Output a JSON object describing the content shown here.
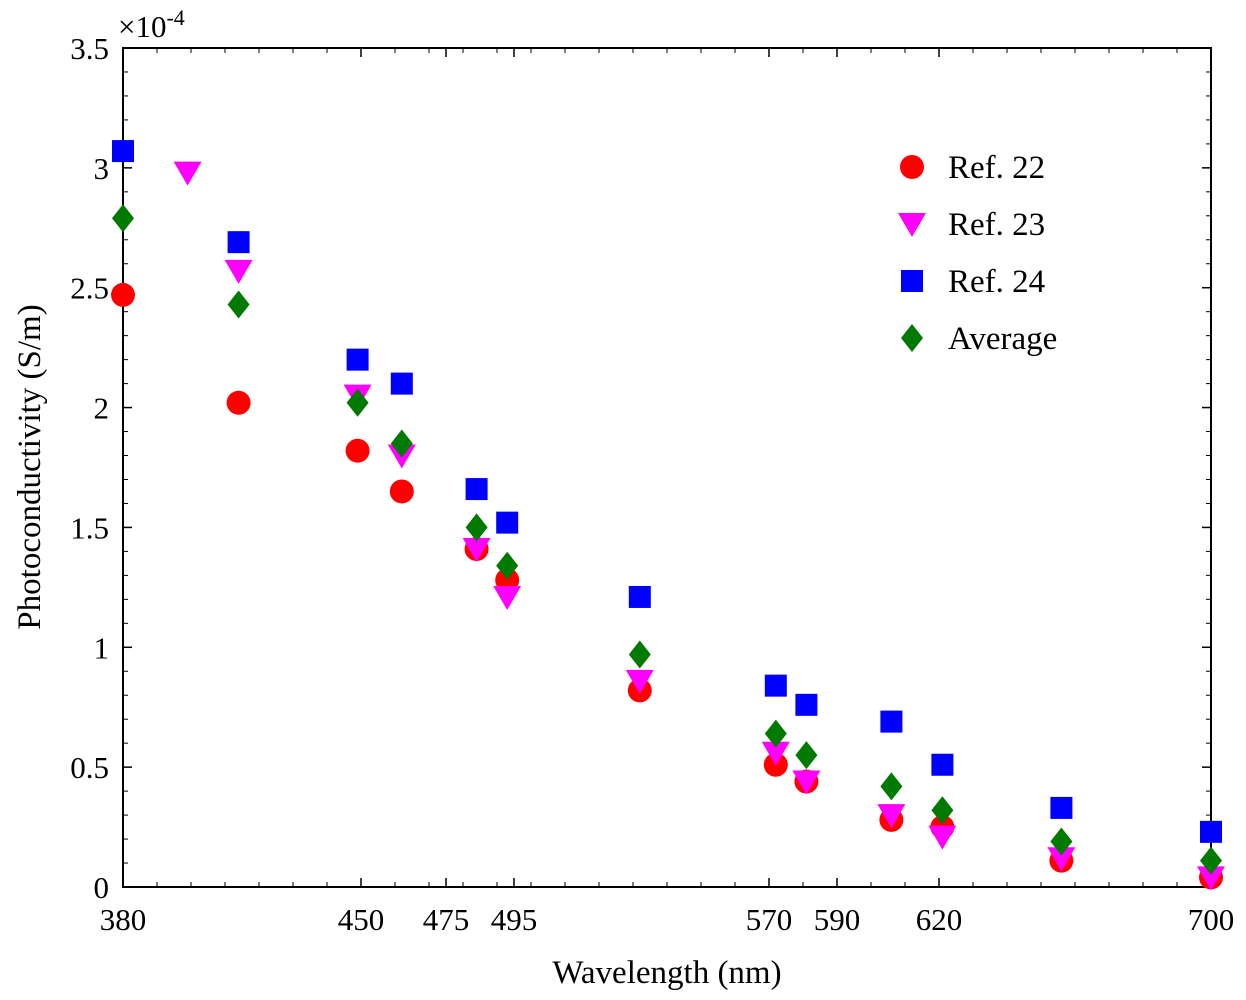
{
  "chart_data": {
    "type": "scatter",
    "xlabel": "Wavelength (nm)",
    "ylabel": "Photoconductivity (S/m)",
    "y_multiplier": {
      "base": "×10",
      "exponent": "-4"
    },
    "xlim": [
      380,
      700
    ],
    "ylim": [
      0,
      3.5
    ],
    "x_ticks": [
      380,
      450,
      475,
      495,
      570,
      590,
      620,
      700
    ],
    "y_ticks": [
      {
        "value": 0,
        "label": "0"
      },
      {
        "value": 0.5,
        "label": "0.5"
      },
      {
        "value": 1,
        "label": "1"
      },
      {
        "value": 1.5,
        "label": "1.5"
      },
      {
        "value": 2,
        "label": "2"
      },
      {
        "value": 2.5,
        "label": "2.5"
      },
      {
        "value": 3,
        "label": "3"
      },
      {
        "value": 3.5,
        "label": "3.5"
      }
    ],
    "grid": false,
    "legend_position": "top-right",
    "series": [
      {
        "name": "Ref. 22",
        "marker": "circle",
        "color": "#ff0000",
        "x": [
          380,
          414,
          449,
          462,
          484,
          493,
          532,
          572,
          581,
          606,
          621,
          656,
          700
        ],
        "y": [
          2.47,
          2.02,
          1.82,
          1.65,
          1.41,
          1.28,
          0.82,
          0.51,
          0.44,
          0.28,
          0.25,
          0.11,
          0.04
        ]
      },
      {
        "name": "Ref. 23",
        "marker": "triangle-down",
        "color": "#ff00ff",
        "x": [
          399,
          414,
          449,
          462,
          484,
          493,
          532,
          572,
          581,
          606,
          621,
          656,
          700
        ],
        "y": [
          2.98,
          2.57,
          2.05,
          1.8,
          1.41,
          1.21,
          0.86,
          0.56,
          0.44,
          0.3,
          0.21,
          0.12,
          0.04
        ]
      },
      {
        "name": "Ref. 24",
        "marker": "square",
        "color": "#0000ff",
        "x": [
          380,
          414,
          449,
          462,
          484,
          493,
          532,
          572,
          581,
          606,
          621,
          656,
          700
        ],
        "y": [
          3.07,
          2.69,
          2.2,
          2.1,
          1.66,
          1.52,
          1.21,
          0.84,
          0.76,
          0.69,
          0.51,
          0.33,
          0.23
        ]
      },
      {
        "name": "Average",
        "marker": "diamond",
        "color": "#007a00",
        "x": [
          380,
          414,
          449,
          462,
          484,
          493,
          532,
          572,
          581,
          606,
          621,
          656,
          700
        ],
        "y": [
          2.79,
          2.43,
          2.02,
          1.85,
          1.5,
          1.34,
          0.97,
          0.64,
          0.55,
          0.42,
          0.32,
          0.19,
          0.11
        ]
      }
    ]
  }
}
